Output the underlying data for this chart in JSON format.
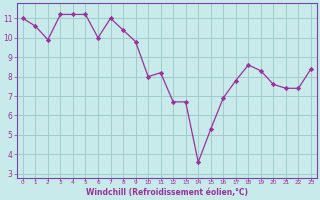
{
  "x": [
    0,
    1,
    2,
    3,
    4,
    5,
    6,
    7,
    8,
    9,
    10,
    11,
    12,
    13,
    14,
    15,
    16,
    17,
    18,
    19,
    20,
    21,
    22,
    23
  ],
  "y": [
    11.0,
    10.6,
    9.9,
    11.2,
    11.2,
    11.2,
    10.0,
    11.0,
    10.4,
    9.8,
    8.0,
    8.2,
    6.7,
    6.7,
    3.6,
    5.3,
    6.9,
    7.8,
    8.6,
    8.3,
    7.6,
    7.4,
    7.4,
    8.4
  ],
  "line_color": "#993399",
  "marker_color": "#993399",
  "bg_color": "#c8eaea",
  "grid_color": "#a0cccc",
  "axis_color": "#7744aa",
  "tick_color": "#993399",
  "xlabel": "Windchill (Refroidissement éolien,°C)",
  "ylabel_ticks": [
    3,
    4,
    5,
    6,
    7,
    8,
    9,
    10,
    11
  ],
  "xtick_labels": [
    "0",
    "1",
    "2",
    "3",
    "4",
    "5",
    "6",
    "7",
    "8",
    "9",
    "10",
    "11",
    "12",
    "13",
    "14",
    "15",
    "16",
    "17",
    "18",
    "19",
    "20",
    "21",
    "22",
    "23"
  ],
  "ylim": [
    2.8,
    11.8
  ],
  "xlim": [
    -0.5,
    23.5
  ],
  "figsize": [
    3.2,
    2.0
  ],
  "dpi": 100
}
